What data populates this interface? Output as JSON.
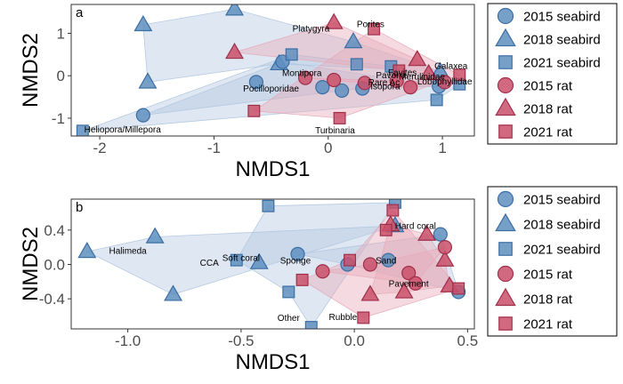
{
  "colors": {
    "seabird_fill": "#5f8fc0",
    "seabird_stroke": "#3b6ea3",
    "seabird_hull": "#b0c6e0",
    "rat_fill": "#c9506a",
    "rat_stroke": "#a02f4a",
    "rat_hull": "#e7a9b8"
  },
  "legend": [
    {
      "label": "2015 seabird",
      "group": "seabird",
      "shape": "circle"
    },
    {
      "label": "2018 seabird",
      "group": "seabird",
      "shape": "triangle"
    },
    {
      "label": "2021 seabird",
      "group": "seabird",
      "shape": "square"
    },
    {
      "label": "2015 rat",
      "group": "rat",
      "shape": "circle"
    },
    {
      "label": "2018 rat",
      "group": "rat",
      "shape": "triangle"
    },
    {
      "label": "2021 rat",
      "group": "rat",
      "shape": "square"
    }
  ],
  "chart_data": [
    {
      "type": "scatter",
      "panel_label": "a",
      "xlabel": "NMDS1",
      "ylabel": "NMDS2",
      "xlim": [
        -2.25,
        1.28
      ],
      "ylim": [
        -1.42,
        1.68
      ],
      "xticks": [
        -2,
        -1,
        0,
        1
      ],
      "yticks": [
        -1,
        0,
        1
      ],
      "tick_labels_x": [
        "-2",
        "-1",
        "0",
        "1"
      ],
      "tick_labels_y": [
        "-1",
        "0",
        "1"
      ],
      "grid": false,
      "legend_position": "right",
      "points": [
        {
          "x": -1.62,
          "y": 1.2,
          "group": "seabird",
          "shape": "triangle"
        },
        {
          "x": -0.82,
          "y": 1.57,
          "group": "seabird",
          "shape": "triangle"
        },
        {
          "x": -1.58,
          "y": -0.15,
          "group": "seabird",
          "shape": "triangle"
        },
        {
          "x": -0.43,
          "y": 0.28,
          "group": "seabird",
          "shape": "triangle"
        },
        {
          "x": 0.22,
          "y": 0.8,
          "group": "seabird",
          "shape": "triangle"
        },
        {
          "x": 0.98,
          "y": 0.1,
          "group": "seabird",
          "shape": "triangle"
        },
        {
          "x": -1.62,
          "y": -0.93,
          "group": "seabird",
          "shape": "circle"
        },
        {
          "x": -0.4,
          "y": 0.33,
          "group": "seabird",
          "shape": "circle"
        },
        {
          "x": -0.63,
          "y": -0.15,
          "group": "seabird",
          "shape": "circle"
        },
        {
          "x": -0.05,
          "y": -0.27,
          "group": "seabird",
          "shape": "circle"
        },
        {
          "x": 0.12,
          "y": -0.35,
          "group": "seabird",
          "shape": "circle"
        },
        {
          "x": 0.3,
          "y": -0.3,
          "group": "seabird",
          "shape": "circle"
        },
        {
          "x": 0.97,
          "y": -0.25,
          "group": "seabird",
          "shape": "circle"
        },
        {
          "x": -2.15,
          "y": -1.3,
          "group": "seabird",
          "shape": "square"
        },
        {
          "x": -0.32,
          "y": 0.5,
          "group": "seabird",
          "shape": "square"
        },
        {
          "x": 0.25,
          "y": 0.27,
          "group": "seabird",
          "shape": "square"
        },
        {
          "x": 0.55,
          "y": 0.22,
          "group": "seabird",
          "shape": "square"
        },
        {
          "x": 0.95,
          "y": -0.57,
          "group": "seabird",
          "shape": "square"
        },
        {
          "x": 1.15,
          "y": -0.2,
          "group": "seabird",
          "shape": "square"
        },
        {
          "x": 0.05,
          "y": 1.25,
          "group": "rat",
          "shape": "triangle"
        },
        {
          "x": -0.82,
          "y": 0.55,
          "group": "rat",
          "shape": "triangle"
        },
        {
          "x": 0.78,
          "y": 0.38,
          "group": "rat",
          "shape": "triangle"
        },
        {
          "x": 0.88,
          "y": 0.05,
          "group": "rat",
          "shape": "triangle"
        },
        {
          "x": -0.2,
          "y": -0.05,
          "group": "rat",
          "shape": "circle"
        },
        {
          "x": 0.05,
          "y": -0.1,
          "group": "rat",
          "shape": "circle"
        },
        {
          "x": 0.32,
          "y": -0.17,
          "group": "rat",
          "shape": "circle"
        },
        {
          "x": 0.6,
          "y": -0.12,
          "group": "rat",
          "shape": "circle"
        },
        {
          "x": 0.72,
          "y": -0.27,
          "group": "rat",
          "shape": "circle"
        },
        {
          "x": 1.02,
          "y": -0.15,
          "group": "rat",
          "shape": "circle"
        },
        {
          "x": 0.4,
          "y": 1.1,
          "group": "rat",
          "shape": "square"
        },
        {
          "x": -0.65,
          "y": -0.83,
          "group": "rat",
          "shape": "square"
        },
        {
          "x": 0.1,
          "y": -1.0,
          "group": "rat",
          "shape": "square"
        },
        {
          "x": 0.62,
          "y": 0.12,
          "group": "rat",
          "shape": "square"
        },
        {
          "x": 1.15,
          "y": 0.02,
          "group": "rat",
          "shape": "square"
        }
      ],
      "hulls": [
        {
          "group": "seabird",
          "shape": "triangle",
          "points": [
            [
              -1.62,
              1.2
            ],
            [
              -0.82,
              1.57
            ],
            [
              0.22,
              0.8
            ],
            [
              0.98,
              0.1
            ],
            [
              -0.43,
              0.28
            ],
            [
              -1.58,
              -0.15
            ]
          ]
        },
        {
          "group": "seabird",
          "shape": "circle",
          "points": [
            [
              -1.62,
              -0.93
            ],
            [
              -0.4,
              0.33
            ],
            [
              0.97,
              -0.25
            ],
            [
              0.3,
              -0.3
            ],
            [
              0.12,
              -0.35
            ]
          ]
        },
        {
          "group": "seabird",
          "shape": "square",
          "points": [
            [
              -2.15,
              -1.3
            ],
            [
              -0.32,
              0.5
            ],
            [
              0.55,
              0.22
            ],
            [
              1.15,
              -0.2
            ],
            [
              0.95,
              -0.57
            ]
          ]
        },
        {
          "group": "rat",
          "shape": "triangle",
          "points": [
            [
              0.05,
              1.25
            ],
            [
              0.78,
              0.38
            ],
            [
              0.88,
              0.05
            ],
            [
              -0.82,
              0.55
            ]
          ]
        },
        {
          "group": "rat",
          "shape": "circle",
          "points": [
            [
              -0.2,
              -0.05
            ],
            [
              0.6,
              -0.12
            ],
            [
              1.02,
              -0.15
            ],
            [
              0.72,
              -0.27
            ],
            [
              0.32,
              -0.17
            ]
          ]
        },
        {
          "group": "rat",
          "shape": "square",
          "points": [
            [
              0.4,
              1.1
            ],
            [
              1.15,
              0.02
            ],
            [
              0.1,
              -1.0
            ],
            [
              -0.65,
              -0.83
            ]
          ]
        }
      ],
      "annotations": [
        {
          "text": "Platygyra",
          "x": -0.15,
          "y": 1.1,
          "anchor": "middle"
        },
        {
          "text": "Porites",
          "x": 0.25,
          "y": 1.2,
          "anchor": "start"
        },
        {
          "text": "Montipora",
          "x": -0.23,
          "y": 0.05,
          "anchor": "middle"
        },
        {
          "text": "Pocilloporidae",
          "x": -0.5,
          "y": -0.32,
          "anchor": "middle"
        },
        {
          "text": "Galaxea",
          "x": 0.93,
          "y": 0.22,
          "anchor": "start"
        },
        {
          "text": "Favites",
          "x": 0.65,
          "y": 0.06,
          "anchor": "middle"
        },
        {
          "text": "Pavona",
          "x": 0.55,
          "y": 0.0,
          "anchor": "middle"
        },
        {
          "text": "Merulinidae",
          "x": 0.62,
          "y": -0.03,
          "anchor": "start"
        },
        {
          "text": "Rare Ac",
          "x": 0.35,
          "y": -0.17,
          "anchor": "start"
        },
        {
          "text": "Lobophyllidae",
          "x": 0.78,
          "y": -0.15,
          "anchor": "start"
        },
        {
          "text": "Isopora",
          "x": 0.5,
          "y": -0.27,
          "anchor": "middle"
        },
        {
          "text": "Heliopora/Millepora",
          "x": -1.8,
          "y": -1.28,
          "anchor": "middle"
        },
        {
          "text": "Turbinaria",
          "x": 0.06,
          "y": -1.3,
          "anchor": "middle"
        }
      ]
    },
    {
      "type": "scatter",
      "panel_label": "b",
      "xlabel": "NMDS1",
      "ylabel": "NMDS2",
      "xlim": [
        -1.25,
        0.53
      ],
      "ylim": [
        -0.75,
        0.76
      ],
      "xticks": [
        -1.0,
        -0.5,
        0.0,
        0.5
      ],
      "yticks": [
        -0.4,
        0.0,
        0.4
      ],
      "tick_labels_x": [
        "-1.0",
        "-0.5",
        "0.0",
        "0.5"
      ],
      "tick_labels_y": [
        "-0.4",
        "0.0",
        "0.4"
      ],
      "grid": false,
      "legend_position": "right",
      "points": [
        {
          "x": -1.18,
          "y": 0.15,
          "group": "seabird",
          "shape": "triangle"
        },
        {
          "x": -0.88,
          "y": 0.32,
          "group": "seabird",
          "shape": "triangle"
        },
        {
          "x": -0.8,
          "y": -0.35,
          "group": "seabird",
          "shape": "triangle"
        },
        {
          "x": -0.42,
          "y": 0.02,
          "group": "seabird",
          "shape": "triangle"
        },
        {
          "x": 0.18,
          "y": 0.45,
          "group": "seabird",
          "shape": "triangle"
        },
        {
          "x": -0.25,
          "y": 0.12,
          "group": "seabird",
          "shape": "circle"
        },
        {
          "x": -0.03,
          "y": 0.0,
          "group": "seabird",
          "shape": "circle"
        },
        {
          "x": 0.15,
          "y": 0.05,
          "group": "seabird",
          "shape": "circle"
        },
        {
          "x": 0.38,
          "y": 0.35,
          "group": "seabird",
          "shape": "circle"
        },
        {
          "x": 0.46,
          "y": -0.32,
          "group": "seabird",
          "shape": "circle"
        },
        {
          "x": -0.38,
          "y": 0.68,
          "group": "seabird",
          "shape": "square"
        },
        {
          "x": 0.18,
          "y": 0.72,
          "group": "seabird",
          "shape": "square"
        },
        {
          "x": -0.52,
          "y": 0.05,
          "group": "seabird",
          "shape": "square"
        },
        {
          "x": -0.29,
          "y": -0.32,
          "group": "seabird",
          "shape": "square"
        },
        {
          "x": -0.19,
          "y": -0.73,
          "group": "seabird",
          "shape": "square"
        },
        {
          "x": 0.16,
          "y": 0.46,
          "group": "rat",
          "shape": "triangle"
        },
        {
          "x": 0.32,
          "y": 0.35,
          "group": "rat",
          "shape": "triangle"
        },
        {
          "x": 0.4,
          "y": 0.05,
          "group": "rat",
          "shape": "triangle"
        },
        {
          "x": 0.07,
          "y": -0.35,
          "group": "rat",
          "shape": "triangle"
        },
        {
          "x": 0.22,
          "y": -0.32,
          "group": "rat",
          "shape": "triangle"
        },
        {
          "x": 0.42,
          "y": -0.25,
          "group": "rat",
          "shape": "triangle"
        },
        {
          "x": -0.14,
          "y": -0.08,
          "group": "rat",
          "shape": "circle"
        },
        {
          "x": 0.07,
          "y": 0.0,
          "group": "rat",
          "shape": "circle"
        },
        {
          "x": 0.24,
          "y": -0.1,
          "group": "rat",
          "shape": "circle"
        },
        {
          "x": 0.27,
          "y": -0.22,
          "group": "rat",
          "shape": "circle"
        },
        {
          "x": 0.4,
          "y": 0.2,
          "group": "rat",
          "shape": "circle"
        },
        {
          "x": 0.17,
          "y": 0.63,
          "group": "rat",
          "shape": "square"
        },
        {
          "x": 0.14,
          "y": 0.4,
          "group": "rat",
          "shape": "square"
        },
        {
          "x": -0.02,
          "y": 0.05,
          "group": "rat",
          "shape": "square"
        },
        {
          "x": -0.23,
          "y": -0.18,
          "group": "rat",
          "shape": "square"
        },
        {
          "x": 0.46,
          "y": -0.28,
          "group": "rat",
          "shape": "square"
        },
        {
          "x": 0.04,
          "y": -0.62,
          "group": "rat",
          "shape": "square"
        }
      ],
      "hulls": [
        {
          "group": "seabird",
          "shape": "triangle",
          "points": [
            [
              -1.18,
              0.15
            ],
            [
              -0.88,
              0.32
            ],
            [
              0.18,
              0.45
            ],
            [
              -0.8,
              -0.35
            ]
          ]
        },
        {
          "group": "seabird",
          "shape": "circle",
          "points": [
            [
              -0.25,
              0.12
            ],
            [
              0.38,
              0.35
            ],
            [
              0.46,
              -0.32
            ],
            [
              -0.03,
              0.0
            ]
          ]
        },
        {
          "group": "seabird",
          "shape": "square",
          "points": [
            [
              -0.38,
              0.68
            ],
            [
              0.18,
              0.72
            ],
            [
              -0.19,
              -0.73
            ],
            [
              -0.29,
              -0.32
            ],
            [
              -0.52,
              0.05
            ]
          ]
        },
        {
          "group": "rat",
          "shape": "triangle",
          "points": [
            [
              0.16,
              0.46
            ],
            [
              0.32,
              0.35
            ],
            [
              0.4,
              0.05
            ],
            [
              0.42,
              -0.25
            ],
            [
              0.22,
              -0.32
            ],
            [
              0.07,
              -0.35
            ]
          ]
        },
        {
          "group": "rat",
          "shape": "circle",
          "points": [
            [
              -0.14,
              -0.08
            ],
            [
              0.07,
              0.0
            ],
            [
              0.4,
              0.2
            ],
            [
              0.27,
              -0.22
            ]
          ]
        },
        {
          "group": "rat",
          "shape": "square",
          "points": [
            [
              0.17,
              0.63
            ],
            [
              0.46,
              -0.28
            ],
            [
              0.04,
              -0.62
            ],
            [
              -0.23,
              -0.18
            ],
            [
              -0.02,
              0.05
            ]
          ]
        }
      ],
      "annotations": [
        {
          "text": "Halimeda",
          "x": -1.0,
          "y": 0.15,
          "anchor": "middle"
        },
        {
          "text": "CCA",
          "x": -0.64,
          "y": 0.01,
          "anchor": "middle"
        },
        {
          "text": "Soft coral",
          "x": -0.5,
          "y": 0.07,
          "anchor": "middle"
        },
        {
          "text": "Sponge",
          "x": -0.26,
          "y": 0.04,
          "anchor": "middle"
        },
        {
          "text": "Hard coral",
          "x": 0.27,
          "y": 0.44,
          "anchor": "middle"
        },
        {
          "text": "Sand",
          "x": 0.14,
          "y": 0.04,
          "anchor": "middle"
        },
        {
          "text": "Pavement",
          "x": 0.24,
          "y": -0.23,
          "anchor": "middle"
        },
        {
          "text": "Other",
          "x": -0.29,
          "y": -0.63,
          "anchor": "middle"
        },
        {
          "text": "Rubble",
          "x": -0.05,
          "y": -0.62,
          "anchor": "middle"
        }
      ]
    }
  ]
}
